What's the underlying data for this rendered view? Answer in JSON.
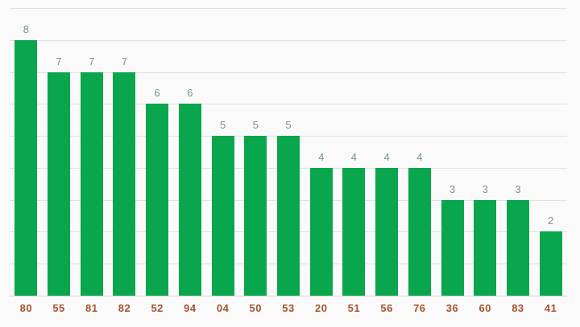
{
  "chart_data": {
    "type": "bar",
    "title": "",
    "xlabel": "",
    "ylabel": "",
    "categories": [
      "80",
      "55",
      "81",
      "82",
      "52",
      "94",
      "04",
      "50",
      "53",
      "20",
      "51",
      "56",
      "76",
      "36",
      "60",
      "83",
      "41"
    ],
    "values": [
      8,
      7,
      7,
      7,
      6,
      6,
      5,
      5,
      5,
      4,
      4,
      4,
      4,
      3,
      3,
      3,
      2
    ],
    "value_labels": [
      "8",
      "7",
      "7",
      "7",
      "6",
      "6",
      "5",
      "5",
      "5",
      "4",
      "4",
      "4",
      "4",
      "3",
      "3",
      "3",
      "2"
    ],
    "ylim": [
      0,
      9
    ],
    "grid": "on",
    "gridline_step": 1,
    "legend": "none",
    "colors": {
      "bar": "#0aa64e",
      "value_label": "#78909c",
      "category_label": "#a5522f",
      "gridline": "#e0e0e0",
      "baseline": "#d8d8d8",
      "background": "#fafafa"
    }
  }
}
